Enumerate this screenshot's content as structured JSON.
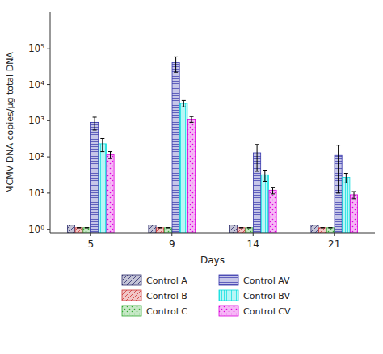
{
  "chart_data": {
    "type": "bar",
    "xlabel": "Days",
    "ylabel": "MCMV DNA copies/μg total DNA",
    "categories": [
      "5",
      "9",
      "14",
      "21"
    ],
    "series": [
      {
        "name": "Control A",
        "color": "#2b2b6b",
        "values": [
          1.3,
          1.3,
          1.3,
          1.3
        ],
        "errors": [
          0,
          0,
          0,
          0
        ]
      },
      {
        "name": "Control B",
        "color": "#cc3333",
        "values": [
          1.1,
          1.1,
          1.1,
          1.1
        ],
        "errors": [
          0,
          0,
          0,
          0
        ]
      },
      {
        "name": "Control C",
        "color": "#33aa33",
        "values": [
          1.1,
          1.1,
          1.1,
          1.1
        ],
        "errors": [
          0,
          0,
          0,
          0
        ]
      },
      {
        "name": "Control AV",
        "color": "#3333aa",
        "values": [
          900,
          40000,
          130,
          110
        ],
        "errors": [
          350,
          18000,
          90,
          100
        ]
      },
      {
        "name": "Control BV",
        "color": "#00dddd",
        "values": [
          230,
          3000,
          32,
          27
        ],
        "errors": [
          90,
          600,
          11,
          8
        ]
      },
      {
        "name": "Control CV",
        "color": "#dd00dd",
        "values": [
          115,
          1100,
          12,
          9
        ],
        "errors": [
          25,
          200,
          2.5,
          2
        ]
      }
    ],
    "log": "y",
    "ylim": [
      0.8,
      1000000
    ],
    "yticks": [
      {
        "value": 1,
        "label": "10⁰"
      },
      {
        "value": 10,
        "label": "10¹"
      },
      {
        "value": 100,
        "label": "10²"
      },
      {
        "value": 1000,
        "label": "10³"
      },
      {
        "value": 10000,
        "label": "10⁴"
      },
      {
        "value": 100000,
        "label": "10⁵"
      }
    ],
    "grid": false,
    "legend": "bottom"
  }
}
